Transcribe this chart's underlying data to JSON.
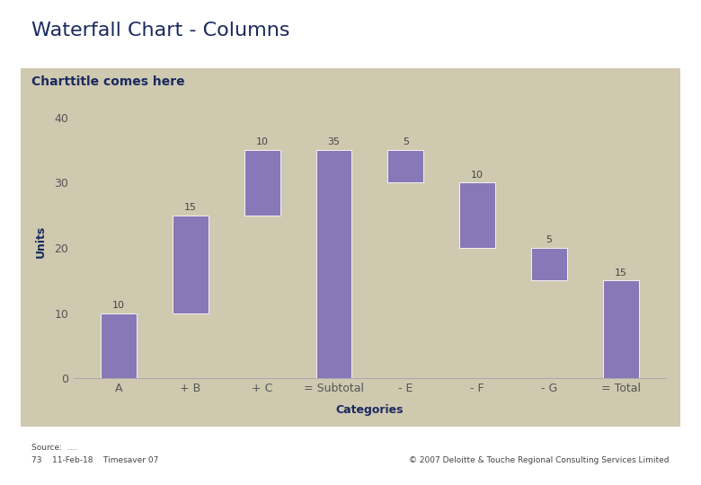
{
  "title": "Waterfall Chart - Columns",
  "chart_title": "Charttitle comes here",
  "ylabel": "Units",
  "xlabel": "Categories",
  "categories": [
    "A",
    "+ B",
    "+ C",
    "= Subtotal",
    "- E",
    "- F",
    "- G",
    "= Total"
  ],
  "bar_values": [
    10,
    15,
    10,
    35,
    5,
    10,
    5,
    15
  ],
  "bar_bottoms": [
    0,
    10,
    25,
    0,
    30,
    20,
    15,
    0
  ],
  "bar_color": "#8878b8",
  "inner_bg_color": "#cfc9b0",
  "outer_bg_color": "#ffffff",
  "title_color": "#1a2a5e",
  "chart_title_color": "#1a2a5e",
  "tick_label_color": "#555555",
  "annotation_color": "#444444",
  "label_color": "#1a2a5e",
  "ylim": [
    0,
    42
  ],
  "yticks": [
    0,
    10,
    20,
    30,
    40
  ],
  "source_text": "Source:  ....",
  "footer_left": "73    11-Feb-18    Timesaver 07",
  "footer_right": "© 2007 Deloitte & Touche Regional Consulting Services Limited",
  "title_fontsize": 16,
  "chart_title_fontsize": 10,
  "axis_label_fontsize": 9,
  "tick_fontsize": 9,
  "annotation_fontsize": 8,
  "footer_fontsize": 6.5
}
